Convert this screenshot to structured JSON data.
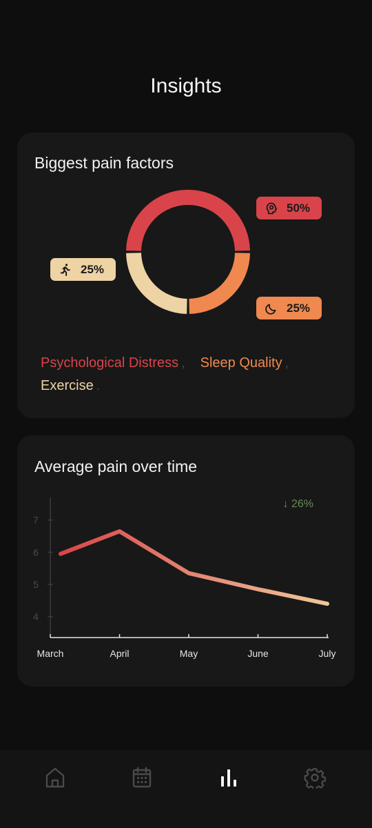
{
  "header": {
    "title": "Insights"
  },
  "pain_factors": {
    "title": "Biggest pain factors",
    "segments": [
      {
        "name": "Psychological Distress",
        "percent": 50,
        "label": "50%",
        "color": "#d9444a",
        "icon": "brain-head-icon"
      },
      {
        "name": "Sleep Quality",
        "percent": 25,
        "label": "25%",
        "color": "#f0894f",
        "icon": "moon-icon"
      },
      {
        "name": "Exercise",
        "percent": 25,
        "label": "25%",
        "color": "#eed3a4",
        "icon": "running-person-icon"
      }
    ],
    "legend": [
      {
        "label": "Psychological Distress",
        "color": "#d9444a"
      },
      {
        "label": "Sleep Quality",
        "color": "#f0894f"
      },
      {
        "label": "Exercise",
        "color": "#eed3a4"
      }
    ]
  },
  "average_pain": {
    "title": "Average pain over time",
    "trend_label": "↓ 26%",
    "trend_color": "#6c8a55"
  },
  "chart_data": {
    "type": "line",
    "title": "Average pain over time",
    "x": [
      "March",
      "April",
      "May",
      "June",
      "July"
    ],
    "y_ticks": [
      4,
      5,
      6,
      7
    ],
    "ylim": [
      3.35,
      7.7
    ],
    "series": [
      {
        "values": [
          5.95,
          6.65,
          5.35,
          4.85,
          4.4
        ]
      }
    ],
    "gradient": [
      "#d9444a",
      "#f0c89a"
    ],
    "grid": false
  },
  "nav": {
    "items": [
      {
        "icon": "home-icon",
        "active": false
      },
      {
        "icon": "calendar-icon",
        "active": false
      },
      {
        "icon": "bar-chart-icon",
        "active": true
      },
      {
        "icon": "gear-icon",
        "active": false
      }
    ]
  }
}
